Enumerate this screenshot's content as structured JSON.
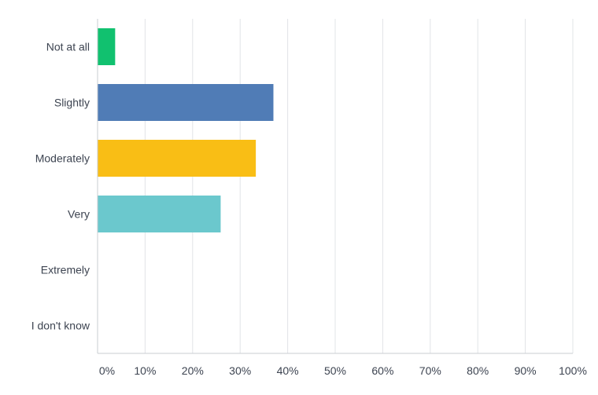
{
  "chart_data": {
    "type": "bar",
    "orientation": "horizontal",
    "categories": [
      "Not at all",
      "Slightly",
      "Moderately",
      "Very",
      "Extremely",
      "I don't know"
    ],
    "values": [
      3.7,
      37.0,
      33.3,
      25.9,
      0,
      0
    ],
    "colors": [
      "#11c16f",
      "#507cb6",
      "#f9be15",
      "#6bc8cd",
      "#ff8b4f",
      "#7d6fb0"
    ],
    "x_ticks": [
      "0%",
      "10%",
      "20%",
      "30%",
      "40%",
      "50%",
      "60%",
      "70%",
      "80%",
      "90%",
      "100%"
    ],
    "xlim": [
      0,
      100
    ],
    "grid": true,
    "legend": "none",
    "title": "",
    "xlabel": "",
    "ylabel": ""
  }
}
